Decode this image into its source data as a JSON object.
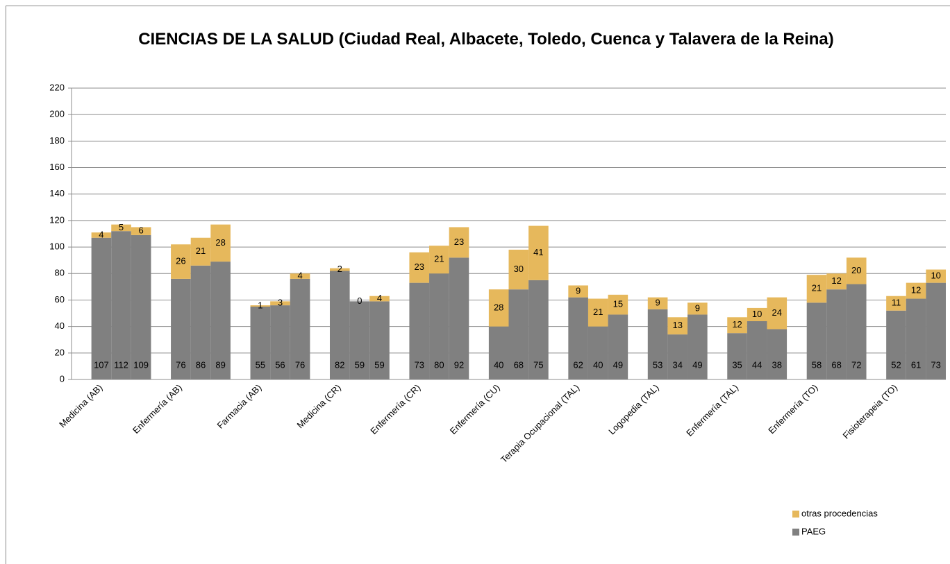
{
  "chart_data": {
    "type": "bar",
    "stacked": true,
    "title": "CIENCIAS DE LA SALUD (Ciudad Real, Albacete, Toledo, Cuenca y Talavera de la Reina)",
    "categories": [
      null,
      "Medicina (AB)",
      null,
      null,
      null,
      "Enfermería (AB)",
      null,
      null,
      null,
      "Farmacia (AB)",
      null,
      null,
      null,
      "Medicina (CR)",
      null,
      null,
      null,
      "Enfermería (CR)",
      null,
      null,
      null,
      "Enfermería (CU)",
      null,
      null,
      null,
      "Terapia Ocupacional (TAL)",
      null,
      null,
      null,
      "Logopedia (TAL)",
      null,
      null,
      null,
      "Enfermería (TAL)",
      null,
      null,
      null,
      "Enfermería (TO)",
      null,
      null,
      null,
      "Fisioterapeia (TO)",
      null,
      null
    ],
    "series": [
      {
        "name": "PAEG",
        "color": "#808080",
        "values": [
          null,
          107,
          112,
          109,
          null,
          76,
          86,
          89,
          null,
          55,
          56,
          76,
          null,
          82,
          59,
          59,
          null,
          73,
          80,
          92,
          null,
          40,
          68,
          75,
          null,
          62,
          40,
          49,
          null,
          53,
          34,
          49,
          null,
          35,
          44,
          38,
          null,
          58,
          68,
          72,
          null,
          52,
          61,
          73
        ]
      },
      {
        "name": "otras procedencias",
        "color": "#e6b85c",
        "values": [
          null,
          4,
          5,
          6,
          null,
          26,
          21,
          28,
          null,
          1,
          3,
          4,
          null,
          2,
          0,
          4,
          null,
          23,
          21,
          23,
          null,
          28,
          30,
          41,
          null,
          9,
          21,
          15,
          null,
          9,
          13,
          9,
          null,
          12,
          10,
          24,
          null,
          21,
          12,
          20,
          null,
          11,
          12,
          10
        ]
      }
    ],
    "ylim": [
      0,
      220
    ],
    "yticks": [
      0,
      20,
      40,
      60,
      80,
      100,
      120,
      140,
      160,
      180,
      200,
      220
    ],
    "grid": true,
    "legend": "bottom-right"
  }
}
